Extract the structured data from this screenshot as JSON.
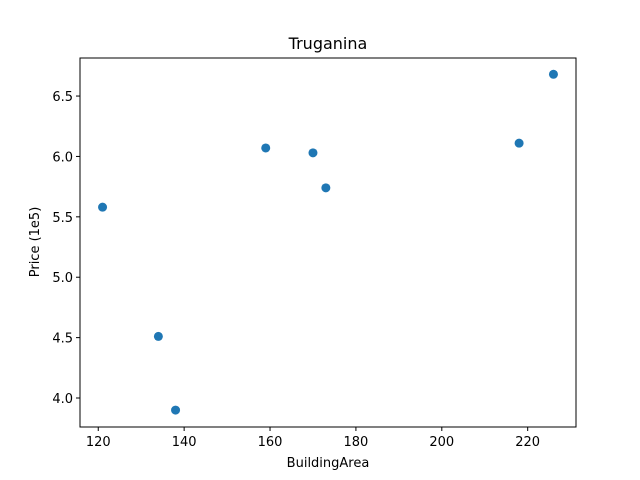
{
  "chart_data": {
    "type": "scatter",
    "title": "Truganina",
    "xlabel": "BuildingArea",
    "ylabel": "Price (1e5)",
    "xlim": [
      115.75,
      231.25
    ],
    "ylim": [
      3.76,
      6.815
    ],
    "xticks": [
      120,
      140,
      160,
      180,
      200,
      220
    ],
    "yticks": [
      4.0,
      4.5,
      5.0,
      5.5,
      6.0,
      6.5
    ],
    "xtick_labels": [
      "120",
      "140",
      "160",
      "180",
      "200",
      "220"
    ],
    "ytick_labels": [
      "4.0",
      "4.5",
      "5.0",
      "5.5",
      "6.0",
      "6.5"
    ],
    "grid": false,
    "series": [
      {
        "color": "#1f77b4",
        "points": [
          {
            "x": 121,
            "y": 5.58
          },
          {
            "x": 134,
            "y": 4.51
          },
          {
            "x": 138,
            "y": 3.9
          },
          {
            "x": 159,
            "y": 6.07
          },
          {
            "x": 170,
            "y": 6.03
          },
          {
            "x": 173,
            "y": 5.74
          },
          {
            "x": 218,
            "y": 6.11
          },
          {
            "x": 226,
            "y": 6.68
          }
        ]
      }
    ]
  }
}
